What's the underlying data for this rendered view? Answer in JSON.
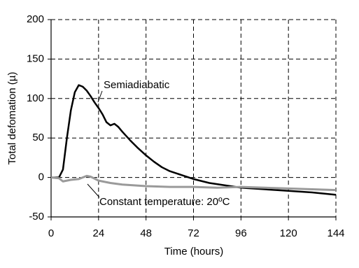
{
  "chart_data": {
    "type": "line",
    "x_label": "Time (hours)",
    "y_label": "Total defomation (µ)",
    "xlim": [
      0,
      144
    ],
    "xticks": [
      0,
      24,
      48,
      72,
      96,
      120,
      144
    ],
    "ylim": [
      -50,
      200
    ],
    "yticks": [
      -50,
      0,
      50,
      100,
      150,
      200
    ],
    "grid": true,
    "series": [
      {
        "name": "Semiadiabatic",
        "color": "#000000",
        "x": [
          0,
          4,
          6,
          8,
          10,
          12,
          14,
          16,
          18,
          20,
          22,
          24,
          26,
          28,
          30,
          32,
          34,
          36,
          40,
          44,
          48,
          52,
          56,
          60,
          66,
          72,
          80,
          88,
          96,
          108,
          120,
          132,
          144
        ],
        "values": [
          0,
          0,
          10,
          50,
          85,
          108,
          117,
          115,
          110,
          103,
          95,
          88,
          80,
          70,
          66,
          68,
          64,
          58,
          47,
          37,
          28,
          20,
          13,
          8,
          3,
          -2,
          -7,
          -10,
          -13,
          -15,
          -17,
          -19,
          -22
        ]
      },
      {
        "name": "Constant temperature: 20ºC",
        "color": "#9a9a9a",
        "x": [
          0,
          4,
          6,
          10,
          14,
          18,
          20,
          24,
          30,
          36,
          48,
          60,
          72,
          84,
          96,
          108,
          120,
          132,
          144
        ],
        "values": [
          0,
          -1,
          -5,
          -3,
          -2,
          2,
          1,
          -4,
          -7,
          -9,
          -11,
          -12,
          -12,
          -13,
          -12,
          -13,
          -14,
          -15,
          -16
        ]
      }
    ]
  }
}
